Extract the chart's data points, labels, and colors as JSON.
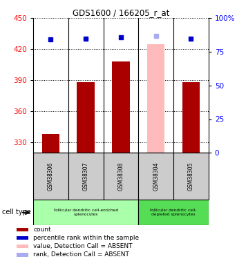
{
  "title": "GDS1600 / 166205_r_at",
  "samples": [
    "GSM38306",
    "GSM38307",
    "GSM38308",
    "GSM38304",
    "GSM38305"
  ],
  "counts": [
    338,
    388,
    408,
    425,
    388
  ],
  "ranks": [
    84,
    85,
    86,
    87,
    85
  ],
  "absent_mask": [
    false,
    false,
    false,
    true,
    false
  ],
  "ylim_left": [
    320,
    450
  ],
  "ylim_right": [
    0,
    100
  ],
  "yticks_left": [
    330,
    360,
    390,
    420,
    450
  ],
  "yticks_right": [
    0,
    25,
    50,
    75,
    100
  ],
  "bar_color_normal": "#aa0000",
  "bar_color_absent": "#ffbbbb",
  "dot_color_normal": "#0000cc",
  "dot_color_absent": "#aaaaee",
  "group1_label": "follicular dendritic cell-enriched\nsplenocytes",
  "group2_label": "follicular dendritic cell-\ndepleted splenocytes",
  "group1_indices": [
    0,
    1,
    2
  ],
  "group2_indices": [
    3,
    4
  ],
  "group1_color": "#aaffaa",
  "group2_color": "#55dd55",
  "sample_box_color": "#cccccc",
  "cell_type_label": "cell type",
  "legend_items": [
    {
      "color": "#aa0000",
      "label": "count"
    },
    {
      "color": "#0000cc",
      "label": "percentile rank within the sample"
    },
    {
      "color": "#ffbbbb",
      "label": "value, Detection Call = ABSENT"
    },
    {
      "color": "#aaaaee",
      "label": "rank, Detection Call = ABSENT"
    }
  ]
}
